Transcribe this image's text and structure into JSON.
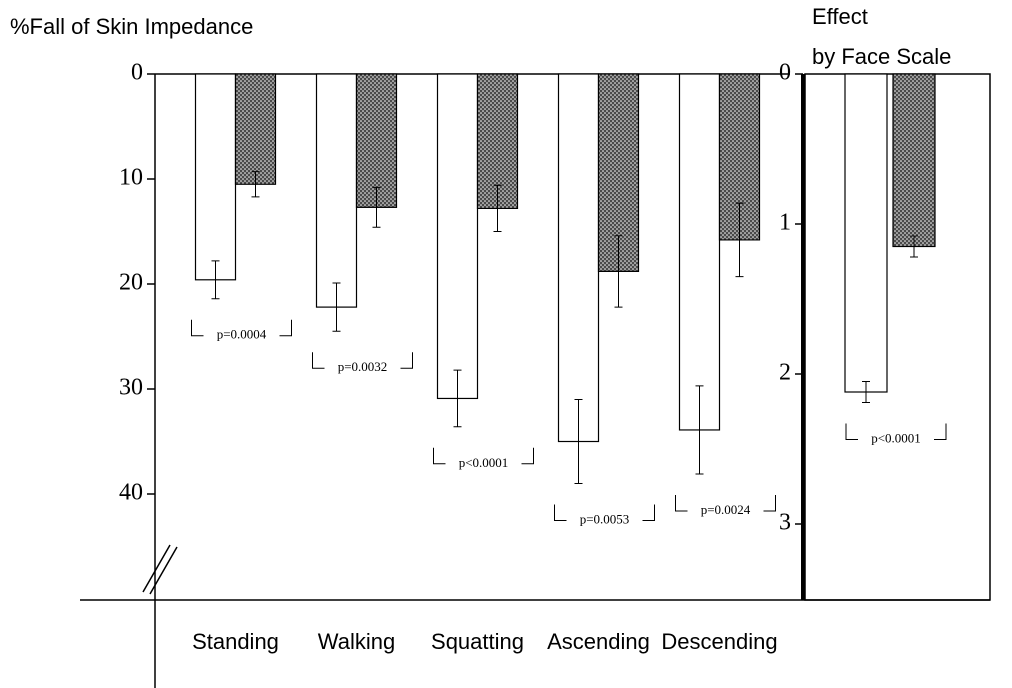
{
  "chart_data": [
    {
      "type": "bar",
      "title": "%Fall of Skin Impedance",
      "categories": [
        "Standing",
        "Walking",
        "Squatting",
        "Ascending",
        "Descending"
      ],
      "series": [
        {
          "color": "#ffffff",
          "values": [
            19.6,
            22.2,
            30.9,
            35,
            33.9
          ],
          "errors": [
            1.8,
            2.3,
            2.7,
            4,
            4.2
          ]
        },
        {
          "color": "#4a4a4a",
          "values": [
            10.5,
            12.7,
            12.8,
            18.8,
            15.8
          ],
          "errors": [
            1.2,
            1.9,
            2.2,
            3.4,
            3.5
          ]
        }
      ],
      "annotations": [
        "p=0.0004",
        "p=0.0032",
        "p<0.0001",
        "p=0.0053",
        "p=0.0024"
      ],
      "ylim": [
        0,
        50
      ],
      "yticks": [
        0,
        10,
        20,
        30,
        40
      ],
      "inverted": true
    },
    {
      "type": "bar",
      "title": [
        "Effect",
        "by Face Scale"
      ],
      "categories": [
        null
      ],
      "series": [
        {
          "color": "#ffffff",
          "values": [
            2.12
          ],
          "errors": [
            0.07
          ]
        },
        {
          "color": "#4a4a4a",
          "values": [
            1.15
          ],
          "errors": [
            0.07
          ]
        }
      ],
      "annotations": [
        "p<0.0001"
      ],
      "ylim": [
        0,
        3.5
      ],
      "yticks": [
        0,
        1,
        2,
        3
      ],
      "inverted": true
    }
  ]
}
